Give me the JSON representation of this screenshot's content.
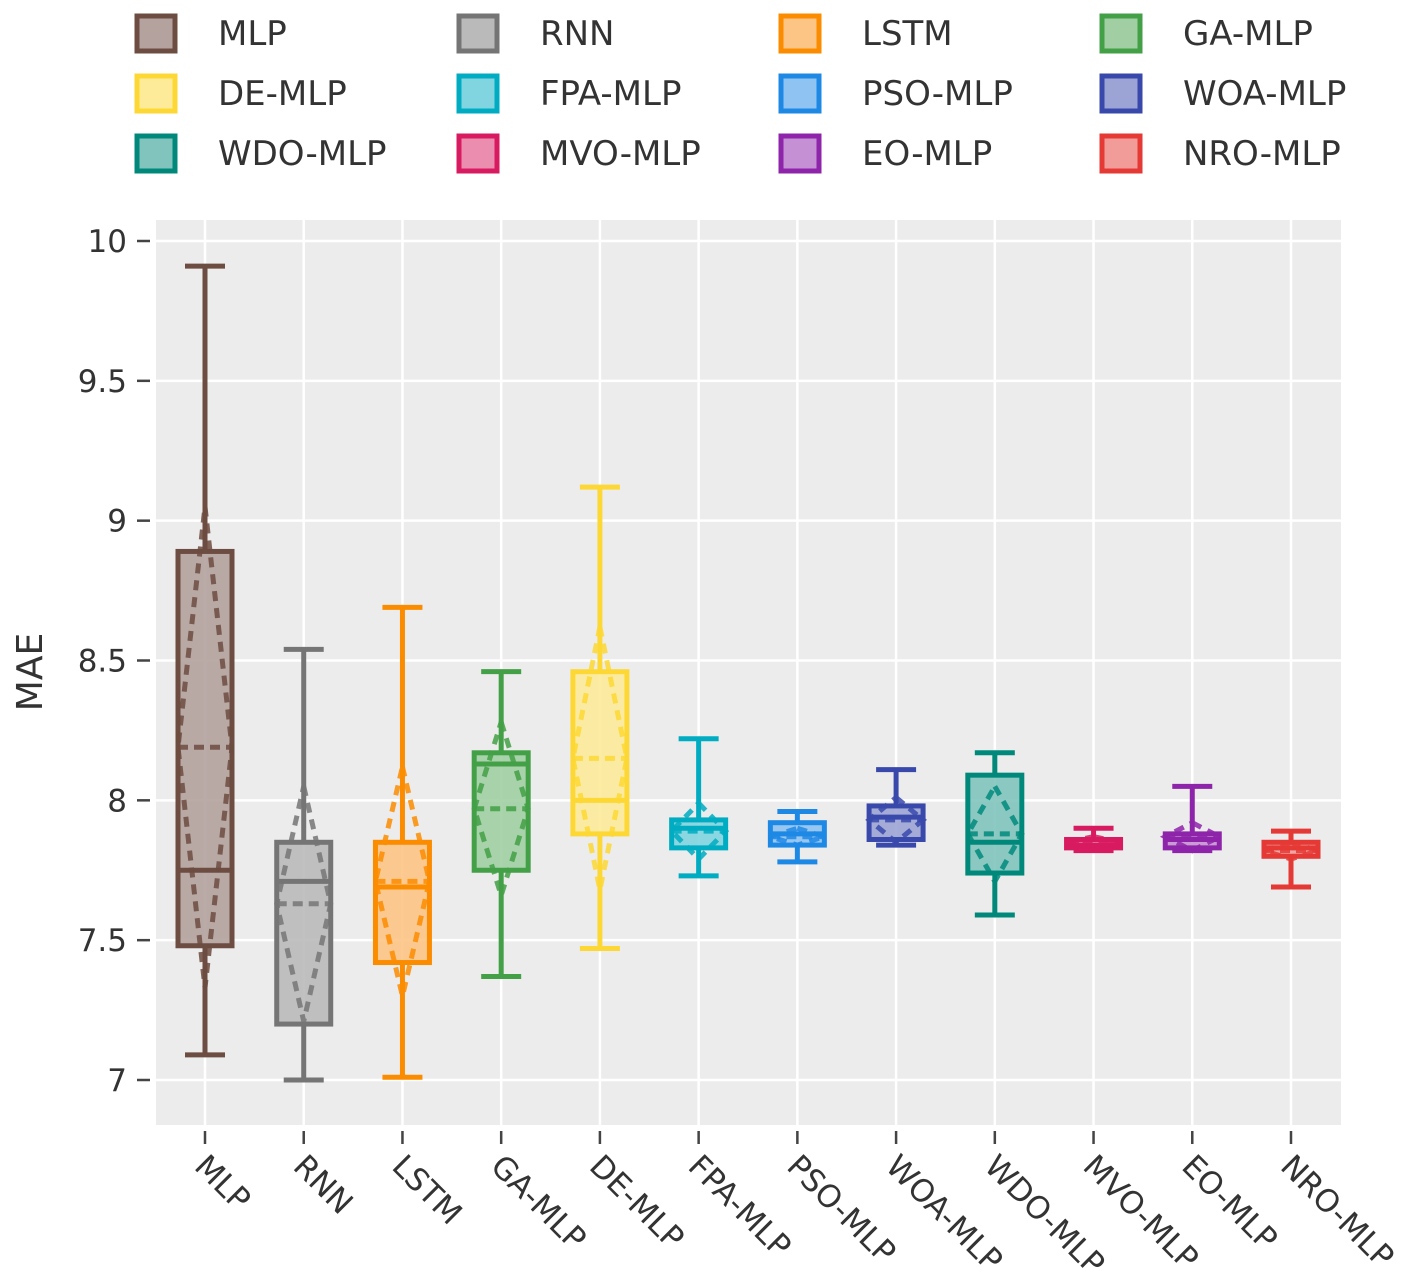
{
  "chart_data": {
    "type": "box",
    "title": "",
    "xlabel": "",
    "ylabel": "MAE",
    "ylim": [
      6.84,
      10.08
    ],
    "yticks": [
      7,
      7.5,
      8,
      8.5,
      9,
      9.5,
      10
    ],
    "ytick_labels": [
      "7",
      "7.5",
      "8",
      "8.5",
      "9",
      "9.5",
      "10"
    ],
    "grid": true,
    "legend_position": "top",
    "categories": [
      "MLP",
      "RNN",
      "LSTM",
      "GA-MLP",
      "DE-MLP",
      "FPA-MLP",
      "PSO-MLP",
      "WOA-MLP",
      "WDO-MLP",
      "MVO-MLP",
      "EO-MLP",
      "NRO-MLP"
    ],
    "legend": [
      {
        "name": "MLP",
        "series": 0
      },
      {
        "name": "RNN",
        "series": 1
      },
      {
        "name": "LSTM",
        "series": 2
      },
      {
        "name": "GA-MLP",
        "series": 3
      },
      {
        "name": "DE-MLP",
        "series": 4
      },
      {
        "name": "FPA-MLP",
        "series": 5
      },
      {
        "name": "PSO-MLP",
        "series": 6
      },
      {
        "name": "WOA-MLP",
        "series": 7
      },
      {
        "name": "WDO-MLP",
        "series": 8
      },
      {
        "name": "MVO-MLP",
        "series": 9
      },
      {
        "name": "EO-MLP",
        "series": 10
      },
      {
        "name": "NRO-MLP",
        "series": 11
      }
    ],
    "series": [
      {
        "name": "MLP",
        "color": "#6D4C41",
        "fill": "#B3A29D",
        "min": 7.09,
        "q1": 7.48,
        "median": 7.75,
        "q3": 8.89,
        "max": 9.91,
        "mean": 8.19,
        "sd": 0.86
      },
      {
        "name": "RNN",
        "color": "#757575",
        "fill": "#BABABA",
        "min": 7.0,
        "q1": 7.2,
        "median": 7.71,
        "q3": 7.85,
        "max": 8.54,
        "mean": 7.63,
        "sd": 0.42
      },
      {
        "name": "LSTM",
        "color": "#FB8C00",
        "fill": "#FDC585",
        "min": 7.01,
        "q1": 7.42,
        "median": 7.69,
        "q3": 7.85,
        "max": 8.69,
        "mean": 7.71,
        "sd": 0.41
      },
      {
        "name": "GA-MLP",
        "color": "#43A047",
        "fill": "#A1CFA3",
        "min": 7.37,
        "q1": 7.75,
        "median": 8.13,
        "q3": 8.17,
        "max": 8.46,
        "mean": 7.97,
        "sd": 0.31
      },
      {
        "name": "DE-MLP",
        "color": "#FDD835",
        "fill": "#FDEB9A",
        "min": 7.47,
        "q1": 7.88,
        "median": 8.0,
        "q3": 8.46,
        "max": 9.12,
        "mean": 8.15,
        "sd": 0.47
      },
      {
        "name": "FPA-MLP",
        "color": "#00ACC1",
        "fill": "#80D5E0",
        "min": 7.73,
        "q1": 7.83,
        "median": 7.9,
        "q3": 7.93,
        "max": 8.22,
        "mean": 7.89,
        "sd": 0.1
      },
      {
        "name": "PSO-MLP",
        "color": "#1E88E5",
        "fill": "#8EC3F2",
        "min": 7.78,
        "q1": 7.84,
        "median": 7.88,
        "q3": 7.92,
        "max": 7.96,
        "mean": 7.87,
        "sd": 0.03
      },
      {
        "name": "WOA-MLP",
        "color": "#3949AB",
        "fill": "#9CA4D5",
        "min": 7.84,
        "q1": 7.86,
        "median": 7.94,
        "q3": 7.98,
        "max": 8.11,
        "mean": 7.93,
        "sd": 0.08
      },
      {
        "name": "WDO-MLP",
        "color": "#00897B",
        "fill": "#80C4BD",
        "min": 7.59,
        "q1": 7.74,
        "median": 7.85,
        "q3": 8.09,
        "max": 8.17,
        "mean": 7.88,
        "sd": 0.17
      },
      {
        "name": "MVO-MLP",
        "color": "#D81B60",
        "fill": "#EB8DAF",
        "min": 7.82,
        "q1": 7.83,
        "median": 7.84,
        "q3": 7.86,
        "max": 7.9,
        "mean": 7.85,
        "sd": 0.02
      },
      {
        "name": "EO-MLP",
        "color": "#8E24AA",
        "fill": "#C691D4",
        "min": 7.82,
        "q1": 7.83,
        "median": 7.86,
        "q3": 7.88,
        "max": 8.05,
        "mean": 7.87,
        "sd": 0.05
      },
      {
        "name": "NRO-MLP",
        "color": "#E53935",
        "fill": "#F29C9A",
        "min": 7.69,
        "q1": 7.8,
        "median": 7.83,
        "q3": 7.85,
        "max": 7.89,
        "mean": 7.82,
        "sd": 0.03
      }
    ]
  }
}
